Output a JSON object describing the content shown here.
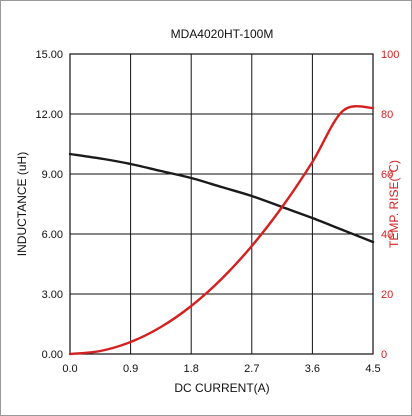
{
  "chart_data": {
    "type": "line",
    "title": "MDA4020HT-100M",
    "xlabel": "DC CURRENT(A)",
    "ylabel": "INDUCTANCE (uH)",
    "y2label": "TEMP. RISE(℃)",
    "xlim": [
      0,
      4.5
    ],
    "ylim": [
      0,
      15
    ],
    "y2lim": [
      0,
      100
    ],
    "x_ticks": [
      "0.0",
      "0.9",
      "1.8",
      "2.7",
      "3.6",
      "4.5"
    ],
    "y_ticks": [
      "0.00",
      "3.00",
      "6.00",
      "9.00",
      "12.00",
      "15.00"
    ],
    "y2_ticks": [
      "0",
      "20",
      "40",
      "60",
      "80",
      "100"
    ],
    "grid": true,
    "series": [
      {
        "axis": "left",
        "color": "#1a1a1a",
        "x": [
          0,
          0.5,
          0.9,
          1.35,
          1.8,
          2.25,
          2.7,
          3.15,
          3.6,
          4.05,
          4.5
        ],
        "values": [
          10.0,
          9.75,
          9.5,
          9.15,
          8.8,
          8.35,
          7.9,
          7.35,
          6.8,
          6.2,
          5.6
        ]
      },
      {
        "axis": "right",
        "color": "#d42020",
        "x": [
          0,
          0.45,
          0.9,
          1.35,
          1.8,
          2.25,
          2.7,
          3.15,
          3.6,
          4.05,
          4.5
        ],
        "values": [
          0,
          1,
          4,
          9,
          16,
          25,
          36,
          49,
          64,
          81,
          82
        ]
      }
    ]
  }
}
